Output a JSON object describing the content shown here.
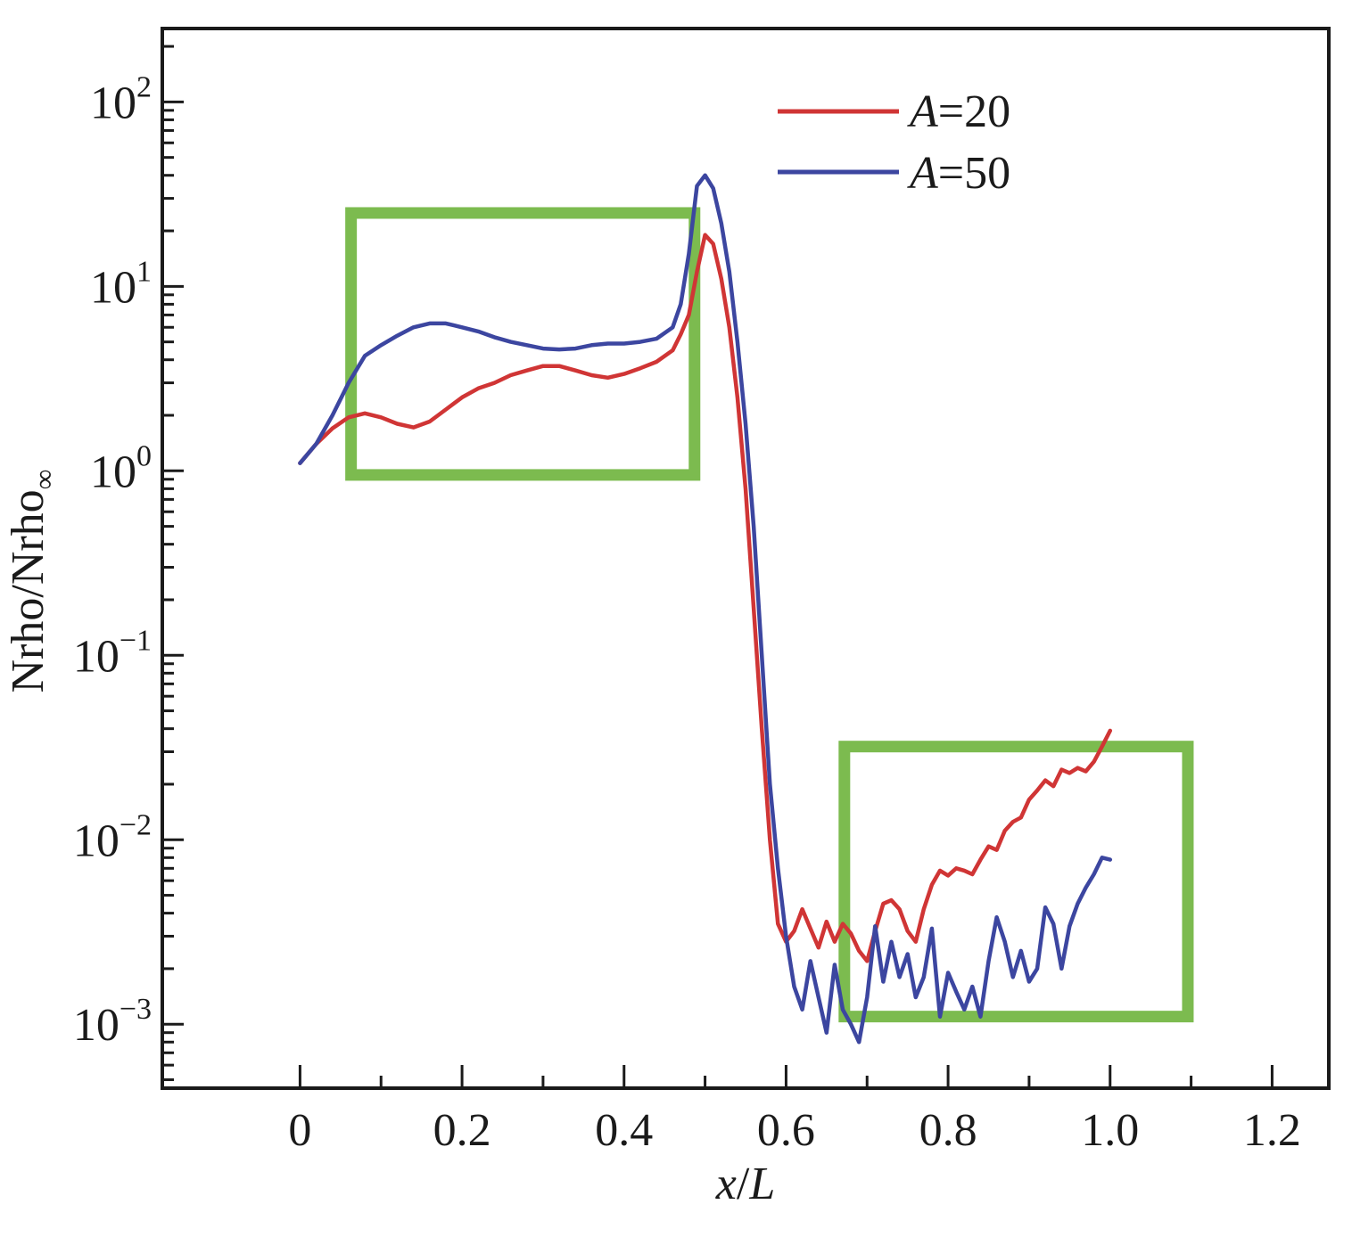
{
  "chart_data": {
    "type": "line",
    "xlabel": {
      "var": "x",
      "sep": "/",
      "unit": "L"
    },
    "ylabel": {
      "main": "Nrho/Nrho",
      "sub": "∞"
    },
    "x_scale": "linear",
    "y_scale": "log",
    "xlim": [
      -0.17,
      1.27
    ],
    "ylim": [
      0.00045,
      250
    ],
    "x_ticks": [
      {
        "value": 0,
        "label": "0"
      },
      {
        "value": 0.2,
        "label": "0.2"
      },
      {
        "value": 0.4,
        "label": "0.4"
      },
      {
        "value": 0.6,
        "label": "0.6"
      },
      {
        "value": 0.8,
        "label": "0.8"
      },
      {
        "value": 1.0,
        "label": "1.0"
      },
      {
        "value": 1.2,
        "label": "1.2"
      }
    ],
    "y_ticks": [
      {
        "value": 100,
        "base": "10",
        "exp": "2"
      },
      {
        "value": 10,
        "base": "10",
        "exp": "1"
      },
      {
        "value": 1,
        "base": "10",
        "exp": "0"
      },
      {
        "value": 0.1,
        "base": "10",
        "exp": "−1"
      },
      {
        "value": 0.01,
        "base": "10",
        "exp": "−2"
      },
      {
        "value": 0.001,
        "base": "10",
        "exp": "−3"
      }
    ],
    "grid": false,
    "legend": {
      "position": "top-right",
      "entries": [
        {
          "var": "A",
          "rest": "=20",
          "color": "#d03535"
        },
        {
          "var": "A",
          "rest": "=50",
          "color": "#3c46a0"
        }
      ]
    },
    "series": [
      {
        "color": "#d03535",
        "x": [
          0.0,
          0.02,
          0.04,
          0.06,
          0.08,
          0.1,
          0.12,
          0.14,
          0.16,
          0.18,
          0.2,
          0.22,
          0.24,
          0.26,
          0.28,
          0.3,
          0.32,
          0.34,
          0.36,
          0.38,
          0.4,
          0.42,
          0.44,
          0.46,
          0.47,
          0.48,
          0.49,
          0.5,
          0.51,
          0.52,
          0.53,
          0.54,
          0.55,
          0.56,
          0.57,
          0.58,
          0.59,
          0.6,
          0.61,
          0.62,
          0.63,
          0.64,
          0.65,
          0.66,
          0.67,
          0.68,
          0.69,
          0.7,
          0.71,
          0.72,
          0.73,
          0.74,
          0.75,
          0.76,
          0.77,
          0.78,
          0.79,
          0.8,
          0.81,
          0.82,
          0.83,
          0.84,
          0.85,
          0.86,
          0.87,
          0.88,
          0.89,
          0.9,
          0.91,
          0.92,
          0.93,
          0.94,
          0.95,
          0.96,
          0.97,
          0.98,
          0.99,
          1.0
        ],
        "y": [
          1.1,
          1.4,
          1.7,
          1.95,
          2.05,
          1.95,
          1.8,
          1.72,
          1.85,
          2.15,
          2.5,
          2.8,
          3.0,
          3.3,
          3.5,
          3.7,
          3.7,
          3.5,
          3.3,
          3.2,
          3.35,
          3.6,
          3.9,
          4.5,
          5.5,
          7.0,
          12.0,
          19.0,
          17.0,
          11.0,
          6.0,
          2.5,
          0.8,
          0.18,
          0.04,
          0.01,
          0.0035,
          0.0028,
          0.0032,
          0.0042,
          0.0033,
          0.0026,
          0.0036,
          0.0028,
          0.0035,
          0.0031,
          0.0025,
          0.0022,
          0.0032,
          0.0045,
          0.0047,
          0.0042,
          0.0032,
          0.0028,
          0.0042,
          0.0057,
          0.0068,
          0.0064,
          0.007,
          0.0068,
          0.0065,
          0.0078,
          0.0092,
          0.0088,
          0.0112,
          0.0125,
          0.0132,
          0.0165,
          0.0185,
          0.021,
          0.0195,
          0.024,
          0.023,
          0.0245,
          0.0235,
          0.0265,
          0.032,
          0.039
        ]
      },
      {
        "color": "#3c46a0",
        "x": [
          0.0,
          0.02,
          0.04,
          0.06,
          0.08,
          0.1,
          0.12,
          0.14,
          0.16,
          0.18,
          0.2,
          0.22,
          0.24,
          0.26,
          0.28,
          0.3,
          0.32,
          0.34,
          0.36,
          0.38,
          0.4,
          0.42,
          0.44,
          0.46,
          0.47,
          0.48,
          0.49,
          0.5,
          0.51,
          0.52,
          0.53,
          0.54,
          0.55,
          0.56,
          0.57,
          0.58,
          0.59,
          0.6,
          0.61,
          0.62,
          0.63,
          0.64,
          0.65,
          0.66,
          0.67,
          0.68,
          0.69,
          0.7,
          0.71,
          0.72,
          0.73,
          0.74,
          0.75,
          0.76,
          0.77,
          0.78,
          0.79,
          0.8,
          0.81,
          0.82,
          0.83,
          0.84,
          0.85,
          0.86,
          0.87,
          0.88,
          0.89,
          0.9,
          0.91,
          0.92,
          0.93,
          0.94,
          0.95,
          0.96,
          0.97,
          0.98,
          0.99,
          1.0
        ],
        "y": [
          1.1,
          1.4,
          2.0,
          3.0,
          4.2,
          4.8,
          5.4,
          6.0,
          6.3,
          6.3,
          6.0,
          5.7,
          5.3,
          5.0,
          4.8,
          4.6,
          4.55,
          4.6,
          4.8,
          4.9,
          4.9,
          5.0,
          5.2,
          6.0,
          8.0,
          15.0,
          35.0,
          40.0,
          34.0,
          22.0,
          12.0,
          5.0,
          1.8,
          0.5,
          0.1,
          0.02,
          0.007,
          0.003,
          0.0016,
          0.0012,
          0.0022,
          0.0014,
          0.0009,
          0.0021,
          0.0012,
          0.001,
          0.0008,
          0.0014,
          0.0034,
          0.0017,
          0.0028,
          0.0018,
          0.0024,
          0.0014,
          0.0018,
          0.0033,
          0.0011,
          0.0019,
          0.0015,
          0.0012,
          0.0016,
          0.0011,
          0.0022,
          0.0038,
          0.0028,
          0.0018,
          0.0025,
          0.0017,
          0.002,
          0.0043,
          0.0035,
          0.002,
          0.0034,
          0.0045,
          0.0055,
          0.0065,
          0.008,
          0.0078
        ]
      }
    ],
    "highlight_boxes": [
      {
        "color": "#7cbb4f",
        "x_range": [
          0.063,
          0.487
        ],
        "y_range": [
          0.95,
          25
        ]
      },
      {
        "color": "#7cbb4f",
        "x_range": [
          0.672,
          1.096
        ],
        "y_range": [
          0.0011,
          0.032
        ]
      }
    ]
  }
}
